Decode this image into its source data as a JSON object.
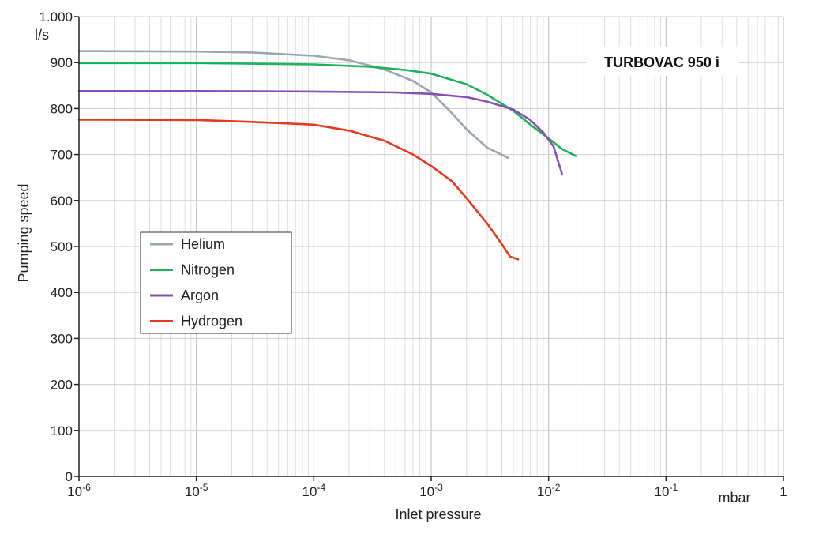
{
  "chart_data": {
    "type": "line",
    "title": "TURBOVAC 950 i",
    "xlabel": "Inlet pressure",
    "ylabel": "Pumping speed",
    "x_unit": "mbar",
    "y_unit": "l/s",
    "x_scale": "log",
    "xlim": [
      1e-06,
      1
    ],
    "ylim": [
      0,
      1000
    ],
    "grid": true,
    "legend_position": "left",
    "x_ticks": [
      {
        "value": 1e-06,
        "base": "10",
        "exp": "-6"
      },
      {
        "value": 1e-05,
        "base": "10",
        "exp": "-5"
      },
      {
        "value": 0.0001,
        "base": "10",
        "exp": "-4"
      },
      {
        "value": 0.001,
        "base": "10",
        "exp": "-3"
      },
      {
        "value": 0.01,
        "base": "10",
        "exp": "-2"
      },
      {
        "value": 0.1,
        "base": "10",
        "exp": "-1"
      },
      {
        "value": 1,
        "base": "1",
        "exp": ""
      }
    ],
    "y_ticks": [
      {
        "value": 0,
        "label": "0"
      },
      {
        "value": 100,
        "label": "100"
      },
      {
        "value": 200,
        "label": "200"
      },
      {
        "value": 300,
        "label": "300"
      },
      {
        "value": 400,
        "label": "400"
      },
      {
        "value": 500,
        "label": "500"
      },
      {
        "value": 600,
        "label": "600"
      },
      {
        "value": 700,
        "label": "700"
      },
      {
        "value": 800,
        "label": "800"
      },
      {
        "value": 900,
        "label": "900"
      },
      {
        "value": 1000,
        "label": "1.000"
      }
    ],
    "series": [
      {
        "name": "Helium",
        "color": "#9aa8b4",
        "points": [
          [
            1e-06,
            925
          ],
          [
            1e-05,
            924
          ],
          [
            3e-05,
            922
          ],
          [
            0.0001,
            915
          ],
          [
            0.0002,
            905
          ],
          [
            0.0004,
            885
          ],
          [
            0.0007,
            860
          ],
          [
            0.001,
            835
          ],
          [
            0.0015,
            790
          ],
          [
            0.002,
            755
          ],
          [
            0.003,
            715
          ],
          [
            0.0045,
            693
          ]
        ]
      },
      {
        "name": "Nitrogen",
        "color": "#1db35a",
        "points": [
          [
            1e-06,
            899
          ],
          [
            1e-05,
            899
          ],
          [
            0.0001,
            896
          ],
          [
            0.0003,
            891
          ],
          [
            0.0006,
            884
          ],
          [
            0.001,
            876
          ],
          [
            0.002,
            853
          ],
          [
            0.003,
            830
          ],
          [
            0.005,
            795
          ],
          [
            0.007,
            765
          ],
          [
            0.01,
            735
          ],
          [
            0.013,
            712
          ],
          [
            0.017,
            697
          ]
        ]
      },
      {
        "name": "Argon",
        "color": "#8a4fb2",
        "points": [
          [
            1e-06,
            838
          ],
          [
            1e-05,
            838
          ],
          [
            0.0001,
            837
          ],
          [
            0.0005,
            835
          ],
          [
            0.001,
            832
          ],
          [
            0.002,
            825
          ],
          [
            0.003,
            815
          ],
          [
            0.005,
            798
          ],
          [
            0.007,
            775
          ],
          [
            0.009,
            748
          ],
          [
            0.011,
            718
          ],
          [
            0.013,
            658
          ]
        ]
      },
      {
        "name": "Hydrogen",
        "color": "#e63a1e",
        "points": [
          [
            1e-06,
            776
          ],
          [
            1e-05,
            775
          ],
          [
            3e-05,
            771
          ],
          [
            0.0001,
            765
          ],
          [
            0.0002,
            752
          ],
          [
            0.0004,
            730
          ],
          [
            0.0007,
            700
          ],
          [
            0.001,
            675
          ],
          [
            0.0015,
            642
          ],
          [
            0.002,
            605
          ],
          [
            0.003,
            550
          ],
          [
            0.004,
            505
          ],
          [
            0.0047,
            478
          ],
          [
            0.0055,
            472
          ]
        ]
      }
    ]
  }
}
